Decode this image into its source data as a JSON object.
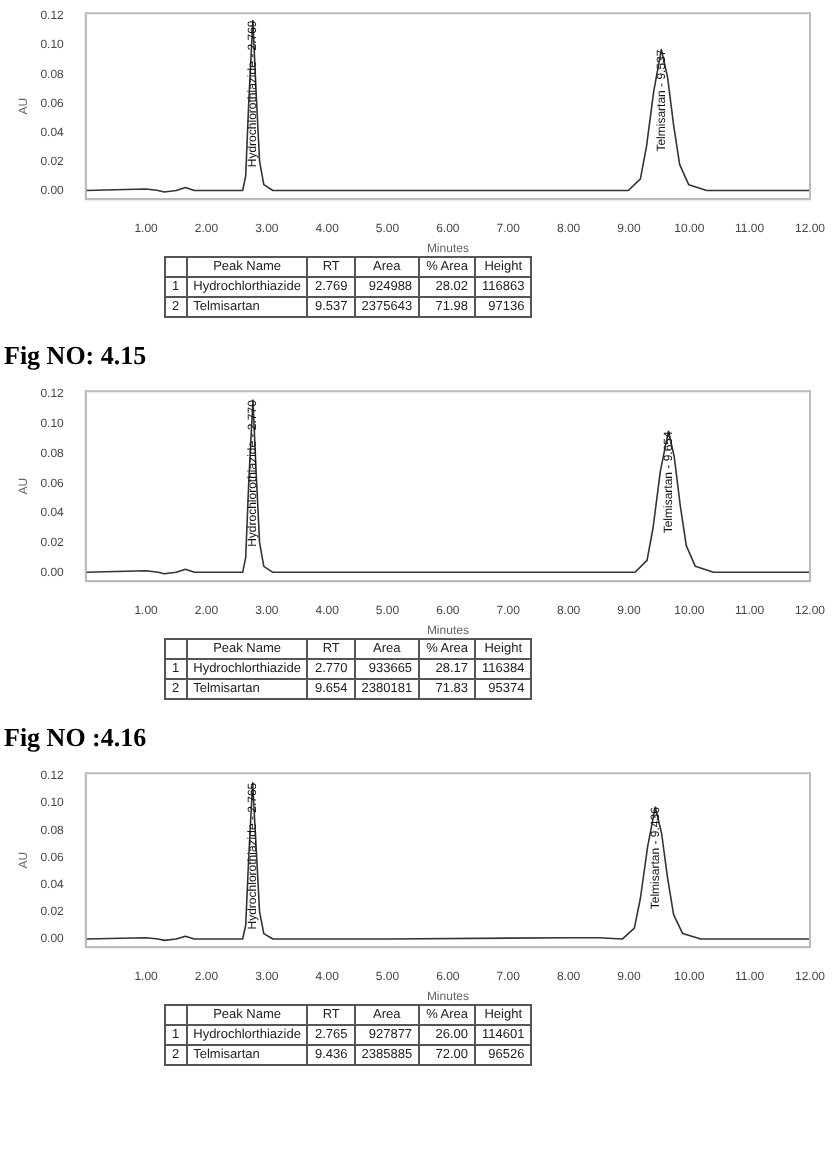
{
  "chart_data": [
    {
      "type": "line",
      "xlabel": "Minutes",
      "ylabel": "AU",
      "color": "#333333",
      "x": [
        0,
        1.0,
        1.2,
        1.3,
        1.5,
        1.65,
        1.8,
        2.6,
        2.65,
        2.7,
        2.769,
        2.82,
        2.88,
        2.95,
        3.1,
        5,
        8.99,
        9.19,
        9.29,
        9.41,
        9.537,
        9.64,
        9.74,
        9.84,
        9.99,
        10.29,
        12
      ],
      "values": [
        0,
        0.001,
        0,
        -0.001,
        0,
        0.002,
        0,
        0,
        0.01,
        0.06,
        0.117,
        0.07,
        0.02,
        0.004,
        0,
        0,
        0,
        0.008,
        0.03,
        0.068,
        0.097,
        0.078,
        0.045,
        0.018,
        0.004,
        0,
        0
      ],
      "xlim": [
        0,
        12
      ],
      "ylim": [
        -0.006,
        0.122
      ],
      "xticks": [
        {
          "value": 1,
          "label": "1.00"
        },
        {
          "value": 2,
          "label": "2.00"
        },
        {
          "value": 3,
          "label": "3.00"
        },
        {
          "value": 4,
          "label": "4.00"
        },
        {
          "value": 5,
          "label": "5.00"
        },
        {
          "value": 6,
          "label": "6.00"
        },
        {
          "value": 7,
          "label": "7.00"
        },
        {
          "value": 8,
          "label": "8.00"
        },
        {
          "value": 9,
          "label": "9.00"
        },
        {
          "value": 10,
          "label": "10.00"
        },
        {
          "value": 11,
          "label": "11.00"
        },
        {
          "value": 12,
          "label": "12.00"
        }
      ],
      "yticks": [
        {
          "value": 0,
          "label": "0.00"
        },
        {
          "value": 0.02,
          "label": "0.02"
        },
        {
          "value": 0.04,
          "label": "0.04"
        },
        {
          "value": 0.06,
          "label": "0.06"
        },
        {
          "value": 0.08,
          "label": "0.08"
        },
        {
          "value": 0.1,
          "label": "0.10"
        },
        {
          "value": 0.12,
          "label": "0.12"
        }
      ],
      "annotations": [
        {
          "text": "Hydrochlorothiazide - 2.769",
          "x": 2.769,
          "y": 0.117
        },
        {
          "text": "Telmisartan - 9.537",
          "x": 9.537,
          "y": 0.097
        },
        "Peak Name",
        "RT",
        "Area",
        "% Area",
        "Height",
        "1",
        "Hydrochlorthiazide",
        "2.769",
        "924988",
        "28.02",
        "116863",
        "2",
        "Telmisartan",
        "9.537",
        "2375643",
        "71.98",
        "97136"
      ]
    },
    {
      "type": "line",
      "title": "Fig NO:  4.15",
      "xlabel": "Minutes",
      "ylabel": "AU",
      "color": "#333333",
      "x": [
        0,
        1.0,
        1.2,
        1.3,
        1.5,
        1.65,
        1.8,
        2.6,
        2.65,
        2.7,
        2.77,
        2.82,
        2.88,
        2.95,
        3.1,
        5,
        9.1,
        9.3,
        9.4,
        9.52,
        9.654,
        9.75,
        9.85,
        9.95,
        10.1,
        10.4,
        12
      ],
      "values": [
        0,
        0.001,
        0,
        -0.001,
        0,
        0.002,
        0,
        0,
        0.01,
        0.06,
        0.116,
        0.07,
        0.02,
        0.004,
        0,
        0,
        0,
        0.008,
        0.03,
        0.068,
        0.095,
        0.078,
        0.045,
        0.018,
        0.004,
        0,
        0
      ],
      "xlim": [
        0,
        12
      ],
      "ylim": [
        -0.006,
        0.122
      ],
      "xticks": [
        {
          "value": 1,
          "label": "1.00"
        },
        {
          "value": 2,
          "label": "2.00"
        },
        {
          "value": 3,
          "label": "3.00"
        },
        {
          "value": 4,
          "label": "4.00"
        },
        {
          "value": 5,
          "label": "5.00"
        },
        {
          "value": 6,
          "label": "6.00"
        },
        {
          "value": 7,
          "label": "7.00"
        },
        {
          "value": 8,
          "label": "8.00"
        },
        {
          "value": 9,
          "label": "9.00"
        },
        {
          "value": 10,
          "label": "10.00"
        },
        {
          "value": 11,
          "label": "11.00"
        },
        {
          "value": 12,
          "label": "12.00"
        }
      ],
      "yticks": [
        {
          "value": 0,
          "label": "0.00"
        },
        {
          "value": 0.02,
          "label": "0.02"
        },
        {
          "value": 0.04,
          "label": "0.04"
        },
        {
          "value": 0.06,
          "label": "0.06"
        },
        {
          "value": 0.08,
          "label": "0.08"
        },
        {
          "value": 0.1,
          "label": "0.10"
        },
        {
          "value": 0.12,
          "label": "0.12"
        }
      ],
      "annotations": [
        {
          "text": "Hydrochlorothiazide - 2.770",
          "x": 2.77,
          "y": 0.116
        },
        {
          "text": "Telmisartan - 9.654",
          "x": 9.654,
          "y": 0.095
        },
        "Peak Name",
        "RT",
        "Area",
        "% Area",
        "Height",
        "1",
        "Hydrochlorthiazide",
        "2.770",
        "933665",
        "28.17",
        "116384",
        "2",
        "Telmisartan",
        "9.654",
        "2380181",
        "71.83",
        "95374"
      ]
    },
    {
      "type": "line",
      "title": "Fig NO :4.16",
      "xlabel": "Minutes",
      "ylabel": "AU",
      "color": "#333333",
      "x": [
        0,
        1.0,
        1.2,
        1.3,
        1.5,
        1.65,
        1.8,
        2.6,
        2.65,
        2.7,
        2.765,
        2.82,
        2.88,
        2.95,
        3.1,
        5,
        8.0,
        8.5,
        8.89,
        9.09,
        9.19,
        9.31,
        9.436,
        9.54,
        9.64,
        9.74,
        9.89,
        10.19,
        12
      ],
      "values": [
        0,
        0.001,
        0,
        -0.001,
        0,
        0.002,
        0,
        0,
        0.01,
        0.06,
        0.115,
        0.07,
        0.02,
        0.004,
        0,
        0,
        0.001,
        0.001,
        0,
        0.008,
        0.03,
        0.068,
        0.097,
        0.078,
        0.045,
        0.018,
        0.004,
        0,
        0
      ],
      "xlim": [
        0,
        12
      ],
      "ylim": [
        -0.006,
        0.122
      ],
      "xticks": [
        {
          "value": 1,
          "label": "1.00"
        },
        {
          "value": 2,
          "label": "2.00"
        },
        {
          "value": 3,
          "label": "3.00"
        },
        {
          "value": 4,
          "label": "4.00"
        },
        {
          "value": 5,
          "label": "5.00"
        },
        {
          "value": 6,
          "label": "6.00"
        },
        {
          "value": 7,
          "label": "7.00"
        },
        {
          "value": 8,
          "label": "8.00"
        },
        {
          "value": 9,
          "label": "9.00"
        },
        {
          "value": 10,
          "label": "10.00"
        },
        {
          "value": 11,
          "label": "11.00"
        },
        {
          "value": 12,
          "label": "12.00"
        }
      ],
      "yticks": [
        {
          "value": 0,
          "label": "0.00"
        },
        {
          "value": 0.02,
          "label": "0.02"
        },
        {
          "value": 0.04,
          "label": "0.04"
        },
        {
          "value": 0.06,
          "label": "0.06"
        },
        {
          "value": 0.08,
          "label": "0.08"
        },
        {
          "value": 0.1,
          "label": "0.10"
        },
        {
          "value": 0.12,
          "label": "0.12"
        }
      ],
      "annotations": [
        {
          "text": "Hydrochlorothiazide - 2.765",
          "x": 2.765,
          "y": 0.115
        },
        {
          "text": "Telmisartan - 9.436",
          "x": 9.436,
          "y": 0.097
        },
        "Peak Name",
        "RT",
        "Area",
        "% Area",
        "Height",
        "1",
        "Hydrochlorthiazide",
        "2.765",
        "927877",
        "26.00",
        "114601",
        "2",
        "Telmisartan",
        "9.436",
        "2385885",
        "72.00",
        "96526"
      ]
    }
  ]
}
